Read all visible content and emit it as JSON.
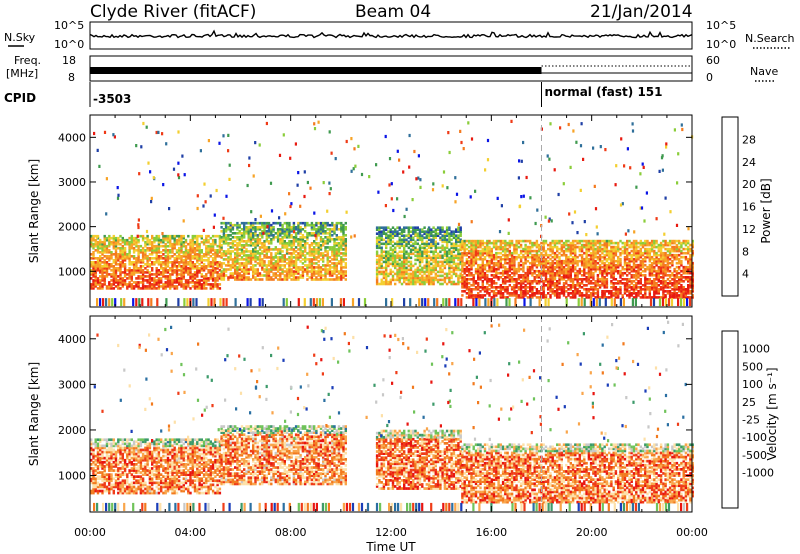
{
  "header": {
    "station": "Clyde River (fitACF)",
    "beam": "Beam 04",
    "date": "21/Jan/2014"
  },
  "strips": {
    "nsky": {
      "label": "N.Sky",
      "left_ticks": [
        "10^5",
        "10^0"
      ],
      "right_ticks": [
        "10^5",
        "10^0"
      ],
      "right_label": "N.Search"
    },
    "freq": {
      "label_line1": "Freq.",
      "label_line2": "[MHz]",
      "left_ticks": [
        "18",
        "8"
      ],
      "right_ticks": [
        "60",
        "0"
      ],
      "right_label": "Nave"
    },
    "cpid": {
      "label": "CPID",
      "left_text": "-3503",
      "right_text": "normal (fast) 151",
      "switch_time_hours": 18.0
    }
  },
  "chart_data": [
    {
      "type": "heatmap",
      "panel": "power",
      "ylabel": "Slant Range [km]",
      "ylim": [
        200,
        4500
      ],
      "yticks": [
        "1000",
        "2000",
        "3000",
        "4000"
      ],
      "xlim_hours": [
        0,
        24
      ],
      "colorbar": {
        "label": "Power [dB]",
        "ticks": [
          "4",
          "8",
          "12",
          "16",
          "20",
          "24",
          "28"
        ],
        "colors": [
          "#0a14e6",
          "#1f3fa6",
          "#2f6f9a",
          "#3f9a4f",
          "#8acd3a",
          "#f3cf30",
          "#f7a326",
          "#f47a1f",
          "#ef3a16",
          "#e81a10"
        ]
      },
      "bands": [
        {
          "t0": 0.0,
          "t1": 5.2,
          "r_lo": 600,
          "r_hi": 1800,
          "level": 0.82
        },
        {
          "t0": 5.2,
          "t1": 10.2,
          "r_lo": 800,
          "r_hi": 2100,
          "level": 0.68
        },
        {
          "t0": 11.4,
          "t1": 14.8,
          "r_lo": 700,
          "r_hi": 2000,
          "level": 0.62
        },
        {
          "t0": 14.8,
          "t1": 24.0,
          "r_lo": 400,
          "r_hi": 1700,
          "level": 0.9
        }
      ]
    },
    {
      "type": "heatmap",
      "panel": "velocity",
      "ylabel": "Slant Range [km]",
      "ylim": [
        200,
        4500
      ],
      "yticks": [
        "1000",
        "2000",
        "3000",
        "4000"
      ],
      "xlim_hours": [
        0,
        24
      ],
      "xticks": [
        "00:00",
        "04:00",
        "08:00",
        "12:00",
        "16:00",
        "20:00",
        "00:00"
      ],
      "xlabel": "Time UT",
      "colorbar": {
        "label": "Velocity [m s⁻¹]",
        "ticks": [
          "1000",
          "500",
          "100",
          "25",
          "-25",
          "-100",
          "-500",
          "-1000"
        ],
        "colors": [
          "#1a3db8",
          "#2a6fa2",
          "#3c9a6a",
          "#6fc35a",
          "#c8c8c8",
          "#fde0a8",
          "#f9a54b",
          "#f27a1e",
          "#ef3c18",
          "#e81510"
        ]
      },
      "bands": [
        {
          "t0": 0.0,
          "t1": 5.2,
          "r_lo": 600,
          "r_hi": 1800,
          "level": 0.72
        },
        {
          "t0": 5.2,
          "t1": 10.2,
          "r_lo": 800,
          "r_hi": 2100,
          "level": 0.7
        },
        {
          "t0": 11.4,
          "t1": 14.8,
          "r_lo": 700,
          "r_hi": 2000,
          "level": 0.75
        },
        {
          "t0": 14.8,
          "t1": 24.0,
          "r_lo": 400,
          "r_hi": 1700,
          "level": 0.74
        }
      ]
    }
  ]
}
